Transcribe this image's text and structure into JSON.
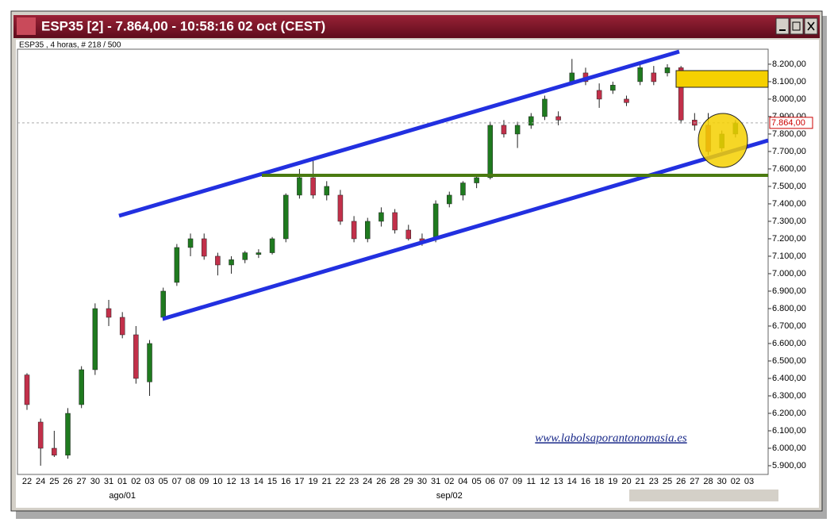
{
  "window_title": "ESP35 [2] - 7.864,00 - 10:58:16  02 oct (CEST)",
  "chart_data": {
    "type": "candlestick",
    "subtitle": "ESP35 , 4 horas, # 218 / 500",
    "watermark": "www.labolsaporantonomasia.es",
    "categories": [
      "22",
      "24",
      "25",
      "26",
      "27",
      "30",
      "31",
      "01",
      "02",
      "03",
      "05",
      "07",
      "08",
      "09",
      "10",
      "12",
      "13",
      "14",
      "15",
      "16",
      "17",
      "19",
      "21",
      "22",
      "23",
      "24",
      "26",
      "28",
      "29",
      "30",
      "31",
      "02",
      "04",
      "05",
      "06",
      "07",
      "09",
      "11",
      "12",
      "13",
      "14",
      "16",
      "18",
      "19",
      "20",
      "21",
      "23",
      "25",
      "26",
      "27",
      "28",
      "30",
      "02",
      "03"
    ],
    "month_labels": [
      null,
      null,
      null,
      null,
      null,
      null,
      null,
      "ago/01",
      null,
      null,
      null,
      null,
      null,
      null,
      null,
      null,
      null,
      null,
      null,
      null,
      null,
      null,
      null,
      null,
      null,
      null,
      null,
      null,
      null,
      null,
      null,
      "sep/02",
      null,
      null,
      null,
      null,
      null,
      null,
      null,
      null,
      null,
      null,
      null,
      null,
      null,
      null,
      null,
      null,
      null,
      null,
      null,
      null,
      null,
      null
    ],
    "open": [
      6420,
      6150,
      6000,
      5960,
      6250,
      6450,
      6800,
      6750,
      6650,
      6380,
      6750,
      6950,
      7150,
      7200,
      7100,
      7050,
      7080,
      7110,
      7120,
      7200,
      7450,
      7550,
      7450,
      7450,
      7300,
      7200,
      7300,
      7350,
      7250,
      7200,
      7200,
      7400,
      7450,
      7520,
      7550,
      7850,
      7800,
      7850,
      7900,
      7900,
      8100,
      8150,
      8050,
      8050,
      8000,
      8100,
      8150,
      8150,
      8180,
      7880,
      7850,
      7720,
      7800,
      null
    ],
    "high": [
      6430,
      6170,
      6100,
      6230,
      6470,
      6830,
      6850,
      6780,
      6700,
      6620,
      6920,
      7170,
      7230,
      7230,
      7120,
      7100,
      7130,
      7140,
      7210,
      7460,
      7600,
      7650,
      7530,
      7480,
      7330,
      7320,
      7380,
      7370,
      7280,
      7230,
      7420,
      7470,
      7530,
      7560,
      7870,
      7880,
      7870,
      7920,
      8020,
      7930,
      8230,
      8180,
      8090,
      8100,
      8020,
      8200,
      8190,
      8200,
      8190,
      7920,
      7920,
      7820,
      7880,
      null
    ],
    "low": [
      6220,
      5900,
      5950,
      5940,
      6230,
      6420,
      6700,
      6630,
      6370,
      6300,
      6730,
      6930,
      7100,
      7080,
      6990,
      7000,
      7060,
      7090,
      7110,
      7180,
      7430,
      7430,
      7420,
      7280,
      7180,
      7180,
      7270,
      7230,
      7190,
      7160,
      7180,
      7380,
      7420,
      7490,
      7540,
      7780,
      7720,
      7830,
      7880,
      7850,
      8080,
      8080,
      7950,
      8030,
      7960,
      8080,
      8080,
      8130,
      7860,
      7820,
      7680,
      7700,
      7780,
      null
    ],
    "close": [
      6250,
      6000,
      5960,
      6200,
      6450,
      6800,
      6750,
      6650,
      6400,
      6600,
      6900,
      7150,
      7200,
      7100,
      7050,
      7080,
      7120,
      7120,
      7200,
      7450,
      7550,
      7450,
      7500,
      7300,
      7200,
      7300,
      7350,
      7250,
      7200,
      7180,
      7400,
      7450,
      7520,
      7550,
      7850,
      7800,
      7850,
      7900,
      8000,
      7880,
      8150,
      8100,
      8000,
      8080,
      7980,
      8180,
      8100,
      8180,
      7880,
      7850,
      7700,
      7800,
      7864,
      null
    ],
    "up_color": "#1f7a1f",
    "down_color": "#c2304a",
    "last_price": {
      "value": 7864,
      "label": "7.864,00"
    },
    "ylim": [
      5850,
      8286
    ],
    "yticks": [
      {
        "value": 5900,
        "label": "5.900,00"
      },
      {
        "value": 6000,
        "label": "6.000,00"
      },
      {
        "value": 6100,
        "label": "6.100,00"
      },
      {
        "value": 6200,
        "label": "6.200,00"
      },
      {
        "value": 6300,
        "label": "6.300,00"
      },
      {
        "value": 6400,
        "label": "6.400,00"
      },
      {
        "value": 6500,
        "label": "6.500,00"
      },
      {
        "value": 6600,
        "label": "6.600,00"
      },
      {
        "value": 6700,
        "label": "6.700,00"
      },
      {
        "value": 6800,
        "label": "6.800,00"
      },
      {
        "value": 6900,
        "label": "6.900,00"
      },
      {
        "value": 7000,
        "label": "7.000,00"
      },
      {
        "value": 7100,
        "label": "7.100,00"
      },
      {
        "value": 7200,
        "label": "7.200,00"
      },
      {
        "value": 7300,
        "label": "7.300,00"
      },
      {
        "value": 7400,
        "label": "7.400,00"
      },
      {
        "value": 7500,
        "label": "7.500,00"
      },
      {
        "value": 7600,
        "label": "7.600,00"
      },
      {
        "value": 7700,
        "label": "7.700,00"
      },
      {
        "value": 7800,
        "label": "7.800,00"
      },
      {
        "value": 7900,
        "label": "7.900,00"
      },
      {
        "value": 8000,
        "label": "8.000,00"
      },
      {
        "value": 8100,
        "label": "8.100,00"
      },
      {
        "value": 8200,
        "label": "8.200,00"
      }
    ],
    "grid": false
  }
}
